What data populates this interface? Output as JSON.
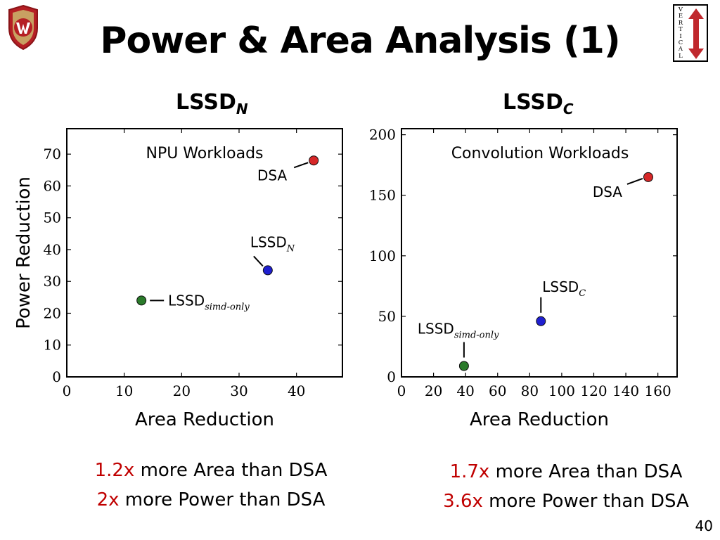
{
  "slide": {
    "title": "Power & Area Analysis (1)",
    "page_number": "40",
    "logo_vertical_letters": [
      "V",
      "E",
      "R",
      "T",
      "I",
      "C",
      "A",
      "L"
    ]
  },
  "left": {
    "heading_main": "LSSD",
    "heading_sub": "N",
    "caption": [
      {
        "highlight": "1.2x",
        "text": " more Area than DSA"
      },
      {
        "highlight": "2x",
        "text": " more Power than DSA"
      }
    ]
  },
  "right": {
    "heading_main": "LSSD",
    "heading_sub": "C",
    "caption": [
      {
        "highlight": "1.7x",
        "text": " more Area than DSA"
      },
      {
        "highlight": "3.6x",
        "text": " more Power than DSA"
      }
    ]
  },
  "chart_data": [
    {
      "type": "scatter",
      "title": "NPU Workloads",
      "xlabel": "Area Reduction",
      "ylabel": "Power Reduction",
      "xlim": [
        0,
        48
      ],
      "ylim": [
        0,
        78
      ],
      "xticks": [
        0,
        10,
        20,
        30,
        40
      ],
      "yticks": [
        0,
        10,
        20,
        30,
        40,
        50,
        60,
        70
      ],
      "grid": false,
      "points": [
        {
          "label": "DSA",
          "x": 43,
          "y": 68,
          "color": "#d62728"
        },
        {
          "label": "LSSD_N",
          "x": 35,
          "y": 33.5,
          "color": "#1f1fd0"
        },
        {
          "label": "LSSD_simd-only",
          "x": 13,
          "y": 24,
          "color": "#2a7a2a"
        }
      ]
    },
    {
      "type": "scatter",
      "title": "Convolution Workloads",
      "xlabel": "Area Reduction",
      "ylabel": "",
      "xlim": [
        0,
        172
      ],
      "ylim": [
        0,
        205
      ],
      "xticks": [
        0,
        20,
        40,
        60,
        80,
        100,
        120,
        140,
        160
      ],
      "yticks": [
        0,
        50,
        100,
        150,
        200
      ],
      "grid": false,
      "points": [
        {
          "label": "DSA",
          "x": 154,
          "y": 165,
          "color": "#d62728"
        },
        {
          "label": "LSSD_C",
          "x": 87,
          "y": 46,
          "color": "#1f1fd0"
        },
        {
          "label": "LSSD_simd-only",
          "x": 39,
          "y": 9,
          "color": "#2a7a2a"
        }
      ]
    }
  ]
}
